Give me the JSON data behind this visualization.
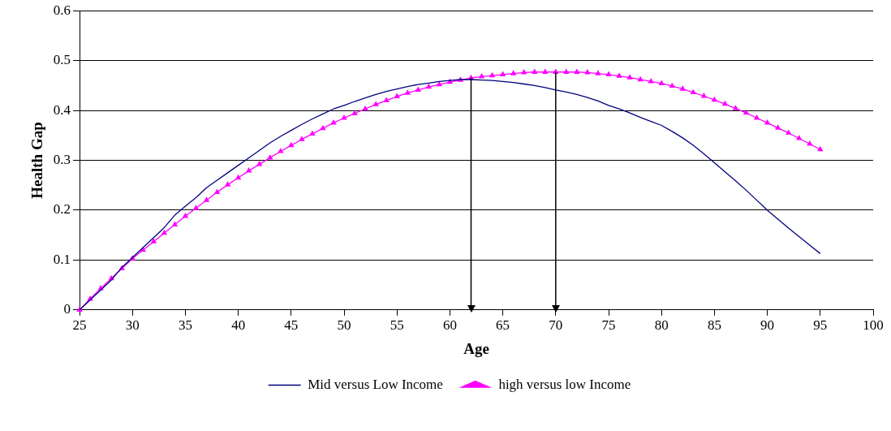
{
  "chart_data": {
    "type": "line",
    "xlabel": "Age",
    "ylabel": "Health Gap",
    "xlim": [
      25,
      100
    ],
    "xticks": [
      25,
      30,
      35,
      40,
      45,
      50,
      55,
      60,
      65,
      70,
      75,
      80,
      85,
      90,
      95,
      100
    ],
    "ylim": [
      0,
      0.6
    ],
    "yticks": [
      0,
      0.1,
      0.2,
      0.3,
      0.4,
      0.5,
      0.6
    ],
    "grid": "y",
    "legend": "bottom",
    "x": [
      25,
      26,
      27,
      28,
      29,
      30,
      31,
      32,
      33,
      34,
      35,
      36,
      37,
      38,
      39,
      40,
      41,
      42,
      43,
      44,
      45,
      46,
      47,
      48,
      49,
      50,
      51,
      52,
      53,
      54,
      55,
      56,
      57,
      58,
      59,
      60,
      61,
      62,
      63,
      64,
      65,
      66,
      67,
      68,
      69,
      70,
      71,
      72,
      73,
      74,
      75,
      76,
      77,
      78,
      79,
      80,
      81,
      82,
      83,
      84,
      85,
      86,
      87,
      88,
      89,
      90,
      91,
      92,
      93,
      94,
      95
    ],
    "series": [
      {
        "name": "Mid versus Low Income",
        "color": "#000080",
        "marker": "none",
        "values": [
          0,
          0.02,
          0.04,
          0.06,
          0.085,
          0.105,
          0.125,
          0.145,
          0.165,
          0.19,
          0.208,
          0.225,
          0.245,
          0.26,
          0.275,
          0.29,
          0.305,
          0.32,
          0.335,
          0.348,
          0.36,
          0.372,
          0.383,
          0.393,
          0.403,
          0.41,
          0.418,
          0.425,
          0.432,
          0.438,
          0.443,
          0.448,
          0.452,
          0.455,
          0.458,
          0.46,
          0.462,
          0.462,
          0.461,
          0.46,
          0.458,
          0.456,
          0.453,
          0.45,
          0.446,
          0.441,
          0.437,
          0.432,
          0.426,
          0.419,
          0.41,
          0.403,
          0.395,
          0.386,
          0.378,
          0.37,
          0.358,
          0.345,
          0.33,
          0.313,
          0.295,
          0.277,
          0.259,
          0.24,
          0.22,
          0.2,
          0.182,
          0.164,
          0.147,
          0.13,
          0.113
        ]
      },
      {
        "name": "high versus low Income",
        "color": "#ff00ff",
        "marker": "triangle",
        "values": [
          0,
          0.022,
          0.043,
          0.063,
          0.083,
          0.103,
          0.12,
          0.137,
          0.154,
          0.171,
          0.188,
          0.204,
          0.22,
          0.236,
          0.251,
          0.265,
          0.279,
          0.292,
          0.305,
          0.318,
          0.33,
          0.342,
          0.353,
          0.364,
          0.375,
          0.385,
          0.394,
          0.403,
          0.412,
          0.42,
          0.428,
          0.435,
          0.441,
          0.447,
          0.452,
          0.457,
          0.461,
          0.465,
          0.468,
          0.47,
          0.472,
          0.474,
          0.476,
          0.477,
          0.477,
          0.477,
          0.477,
          0.477,
          0.476,
          0.474,
          0.472,
          0.469,
          0.466,
          0.462,
          0.458,
          0.454,
          0.449,
          0.443,
          0.436,
          0.429,
          0.421,
          0.413,
          0.404,
          0.395,
          0.385,
          0.375,
          0.365,
          0.355,
          0.344,
          0.333,
          0.322
        ]
      }
    ],
    "ref_lines": [
      {
        "axis": "x",
        "value": 62,
        "color": "#000000"
      },
      {
        "axis": "x",
        "value": 70,
        "color": "#000000"
      }
    ]
  }
}
